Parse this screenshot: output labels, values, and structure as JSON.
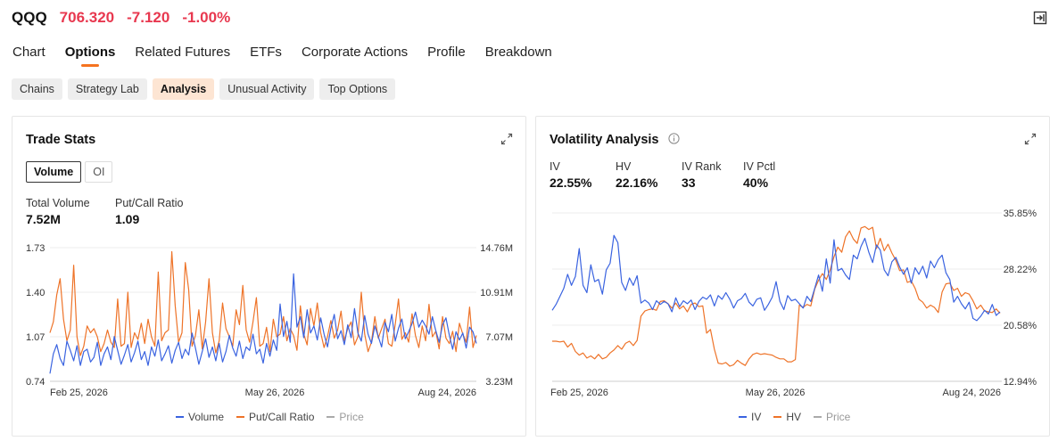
{
  "header": {
    "symbol": "QQQ",
    "price": "706.320",
    "change": "-7.120",
    "change_pct": "-1.00%"
  },
  "tabs": [
    "Chart",
    "Options",
    "Related Futures",
    "ETFs",
    "Corporate Actions",
    "Profile",
    "Breakdown"
  ],
  "active_tab": "Options",
  "subtabs": [
    "Chains",
    "Strategy Lab",
    "Analysis",
    "Unusual Activity",
    "Top Options"
  ],
  "active_subtab": "Analysis",
  "trade_stats": {
    "title": "Trade Stats",
    "toggle": [
      "Volume",
      "OI"
    ],
    "stats": [
      {
        "label": "Total Volume",
        "value": "7.52M"
      },
      {
        "label": "Put/Call Ratio",
        "value": "1.09"
      }
    ],
    "legend": [
      "Volume",
      "Put/Call Ratio",
      "Price"
    ]
  },
  "volatility": {
    "title": "Volatility Analysis",
    "stats": [
      {
        "label": "IV",
        "value": "22.55%"
      },
      {
        "label": "HV",
        "value": "22.16%"
      },
      {
        "label": "IV Rank",
        "value": "33"
      },
      {
        "label": "IV Pctl",
        "value": "40%"
      }
    ],
    "legend": [
      "IV",
      "HV",
      "Price"
    ]
  },
  "colors": {
    "blue": "#3a63e0",
    "orange": "#ee7328",
    "gray": "#aaaaaa",
    "red": "#e8384f",
    "accent": "#f5731f"
  },
  "chart_data": [
    {
      "type": "line",
      "title": "Trade Stats",
      "x_ticks": [
        "Feb 25, 2026",
        "May 26, 2026",
        "Aug 24, 2026"
      ],
      "y_left_ticks": [
        "1.73",
        "1.40",
        "1.07",
        "0.74"
      ],
      "y_right_ticks": [
        "14.76M",
        "10.91M",
        "7.07M",
        "3.23M"
      ],
      "ylim_left": [
        0.74,
        1.73
      ],
      "ylim_right": [
        3.23,
        14.76
      ],
      "series": [
        {
          "name": "Volume",
          "axis": "right",
          "values": [
            3.9,
            5.6,
            6.4,
            5.2,
            4.6,
            6.7,
            5.9,
            5.0,
            6.3,
            4.6,
            5.8,
            6.0,
            4.9,
            5.3,
            6.6,
            4.6,
            5.6,
            6.2,
            5.1,
            7.1,
            5.9,
            4.7,
            5.5,
            6.4,
            4.9,
            5.7,
            6.7,
            5.1,
            5.8,
            4.6,
            6.2,
            5.4,
            6.8,
            5.0,
            5.6,
            6.3,
            4.8,
            5.9,
            6.6,
            5.2,
            6.0,
            5.5,
            7.4,
            6.1,
            4.7,
            5.8,
            6.9,
            5.3,
            6.2,
            5.0,
            6.5,
            4.9,
            5.8,
            7.2,
            6.1,
            5.4,
            6.7,
            5.2,
            6.2,
            5.9,
            7.3,
            5.6,
            6.0,
            4.8,
            6.5,
            5.4,
            6.8,
            5.9,
            9.9,
            7.1,
            8.4,
            6.6,
            12.5,
            7.9,
            8.8,
            7.0,
            9.4,
            7.4,
            8.0,
            6.8,
            8.7,
            7.3,
            6.2,
            7.8,
            9.0,
            6.9,
            7.6,
            6.4,
            8.1,
            7.0,
            9.5,
            7.4,
            6.7,
            8.9,
            7.3,
            6.5,
            8.0,
            7.1,
            6.2,
            8.3,
            7.5,
            9.0,
            6.7,
            7.8,
            8.6,
            6.9,
            7.5,
            8.2,
            9.2,
            7.9,
            8.5,
            8.0,
            7.3,
            8.8,
            7.6,
            6.6,
            8.1,
            8.7,
            7.2,
            6.0,
            7.5,
            6.8,
            7.4,
            6.1,
            7.9,
            7.5,
            6.5
          ]
        },
        {
          "name": "Put/Call Ratio",
          "axis": "left",
          "values": [
            1.1,
            1.18,
            1.38,
            1.5,
            1.2,
            1.04,
            1.12,
            1.6,
            1.07,
            0.93,
            1.0,
            1.15,
            1.1,
            1.13,
            1.07,
            0.96,
            1.02,
            1.12,
            1.03,
            0.99,
            1.35,
            1.0,
            1.02,
            1.4,
            0.99,
            1.1,
            1.05,
            1.17,
            1.02,
            1.2,
            1.07,
            1.0,
            1.55,
            1.04,
            1.1,
            1.12,
            1.7,
            1.3,
            1.03,
            1.1,
            1.62,
            1.42,
            1.0,
            1.08,
            1.27,
            0.98,
            1.18,
            1.5,
            1.1,
            0.95,
            1.04,
            1.32,
            1.13,
            1.07,
            1.0,
            1.27,
            1.16,
            1.45,
            1.12,
            1.03,
            1.18,
            1.36,
            1.0,
            1.02,
            1.14,
            0.96,
            1.2,
            1.07,
            1.09,
            1.22,
            1.04,
            1.13,
            1.08,
            0.97,
            1.3,
            1.09,
            1.01,
            1.28,
            1.15,
            1.32,
            1.1,
            0.99,
            1.07,
            1.19,
            1.06,
            1.12,
            1.26,
            1.04,
            1.13,
            1.18,
            1.01,
            1.07,
            1.4,
            1.09,
            0.96,
            1.03,
            1.22,
            1.06,
            1.13,
            1.2,
            1.02,
            1.0,
            1.16,
            1.35,
            1.05,
            1.1,
            1.03,
            1.24,
            1.08,
            0.99,
            1.15,
            1.04,
            1.31,
            1.07,
            1.11,
            0.98,
            1.22,
            1.06,
            1.02,
            1.11,
            0.96,
            1.17,
            1.09,
            1.03,
            1.29,
            0.99,
            1.08
          ]
        },
        {
          "name": "Price",
          "axis": "right",
          "values": []
        }
      ]
    },
    {
      "type": "line",
      "title": "Volatility Analysis",
      "x_ticks": [
        "Feb 25, 2026",
        "May 26, 2026",
        "Aug 24, 2026"
      ],
      "y_right_ticks": [
        "35.85%",
        "28.22%",
        "20.58%",
        "12.94%"
      ],
      "ylim": [
        12.94,
        35.85
      ],
      "series": [
        {
          "name": "IV",
          "values": [
            22.6,
            23.4,
            24.5,
            25.6,
            27.5,
            26.0,
            27.2,
            31.0,
            26.0,
            25.0,
            28.8,
            26.5,
            26.8,
            24.8,
            28.1,
            29.0,
            32.8,
            31.8,
            26.4,
            25.3,
            27.0,
            26.0,
            27.3,
            23.6,
            24.0,
            23.6,
            22.7,
            23.9,
            23.4,
            23.8,
            23.5,
            22.4,
            24.3,
            23.1,
            23.9,
            23.5,
            24.0,
            22.7,
            23.8,
            24.4,
            24.1,
            24.7,
            23.2,
            24.6,
            24.1,
            25.0,
            24.1,
            22.9,
            23.9,
            24.2,
            24.9,
            23.7,
            23.2,
            24.1,
            24.3,
            22.6,
            23.4,
            24.4,
            26.5,
            23.8,
            22.7,
            24.6,
            23.9,
            24.1,
            23.5,
            22.9,
            24.5,
            23.8,
            25.6,
            27.4,
            25.2,
            29.6,
            26.3,
            32.2,
            28.0,
            28.3,
            27.4,
            26.8,
            30.1,
            29.6,
            31.3,
            32.4,
            30.5,
            29.1,
            31.5,
            30.8,
            28.1,
            27.3,
            29.2,
            29.8,
            28.5,
            27.5,
            28.4,
            26.3,
            28.4,
            27.5,
            28.6,
            27.0,
            29.3,
            28.4,
            29.5,
            30.1,
            27.7,
            26.8,
            23.7,
            24.5,
            23.5,
            22.8,
            23.7,
            21.5,
            21.2,
            21.8,
            22.6,
            22.1,
            23.4,
            21.9,
            22.4
          ]
        },
        {
          "name": "HV",
          "values": [
            18.4,
            18.4,
            18.3,
            18.4,
            17.6,
            18.1,
            17.0,
            16.5,
            16.8,
            16.1,
            16.4,
            16.0,
            16.6,
            16.0,
            16.2,
            16.8,
            17.2,
            17.8,
            17.3,
            18.1,
            18.4,
            17.8,
            18.5,
            21.8,
            22.5,
            22.7,
            22.8,
            22.6,
            23.8,
            23.9,
            23.5,
            22.9,
            23.6,
            22.8,
            23.2,
            22.4,
            23.4,
            23.6,
            23.1,
            23.2,
            19.5,
            20.0,
            17.3,
            15.4,
            15.3,
            15.5,
            15.0,
            15.2,
            15.8,
            15.4,
            15.1,
            16.0,
            16.6,
            16.8,
            16.6,
            16.7,
            16.6,
            16.5,
            16.2,
            16.0,
            16.0,
            15.6,
            15.6,
            15.9,
            23.3,
            23.0,
            23.4,
            23.2,
            25.5,
            26.7,
            27.6,
            26.8,
            28.1,
            29.9,
            31.2,
            30.5,
            32.6,
            33.4,
            32.3,
            31.7,
            33.8,
            34.0,
            33.6,
            33.9,
            31.0,
            32.4,
            30.7,
            31.6,
            30.4,
            29.4,
            28.0,
            28.1,
            26.4,
            26.6,
            25.6,
            24.1,
            23.7,
            22.9,
            23.3,
            23.0,
            22.3,
            25.1,
            26.2,
            26.3,
            25.3,
            25.6,
            24.5,
            25.0,
            24.8,
            23.9,
            22.8,
            23.3,
            22.5,
            22.4,
            22.3,
            22.8,
            22.2
          ]
        },
        {
          "name": "Price",
          "values": []
        }
      ]
    }
  ]
}
